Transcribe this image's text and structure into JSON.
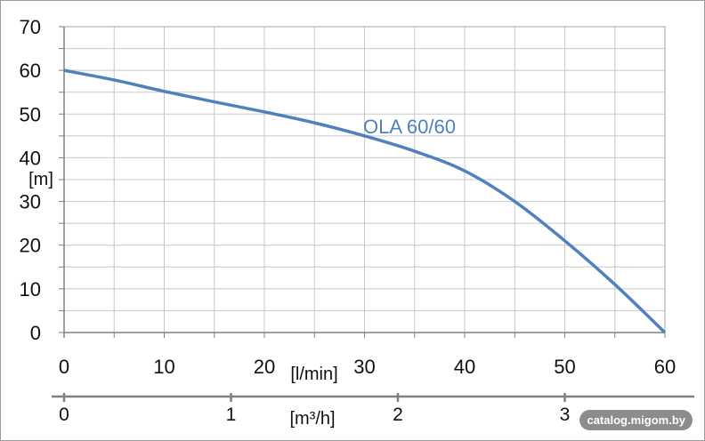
{
  "chart_data": {
    "type": "line",
    "x": [
      0,
      5,
      10,
      15,
      20,
      25,
      30,
      35,
      40,
      45,
      50,
      55,
      60
    ],
    "series": [
      {
        "name": "OLA 60/60",
        "values": [
          60,
          57.8,
          55.2,
          52.8,
          50.5,
          48,
          45,
          41.5,
          37,
          30,
          21,
          11,
          0
        ]
      }
    ],
    "ylabel": "[m]",
    "xlabel": "[l/min]",
    "xlabel2": "[m³/h]",
    "ylim": [
      0,
      70
    ],
    "xlim": [
      0,
      60
    ],
    "yticks": [
      "0",
      "10",
      "20",
      "30",
      "40",
      "50",
      "60",
      "70"
    ],
    "xticks": [
      "0",
      "10",
      "20",
      "30",
      "40",
      "50",
      "60"
    ],
    "xticks2": [
      "0",
      "1",
      "2",
      "3"
    ],
    "grid": true,
    "line_color": "#4f81bd",
    "grid_color": "#c8c8c8"
  },
  "watermark": "catalog.migom.by"
}
